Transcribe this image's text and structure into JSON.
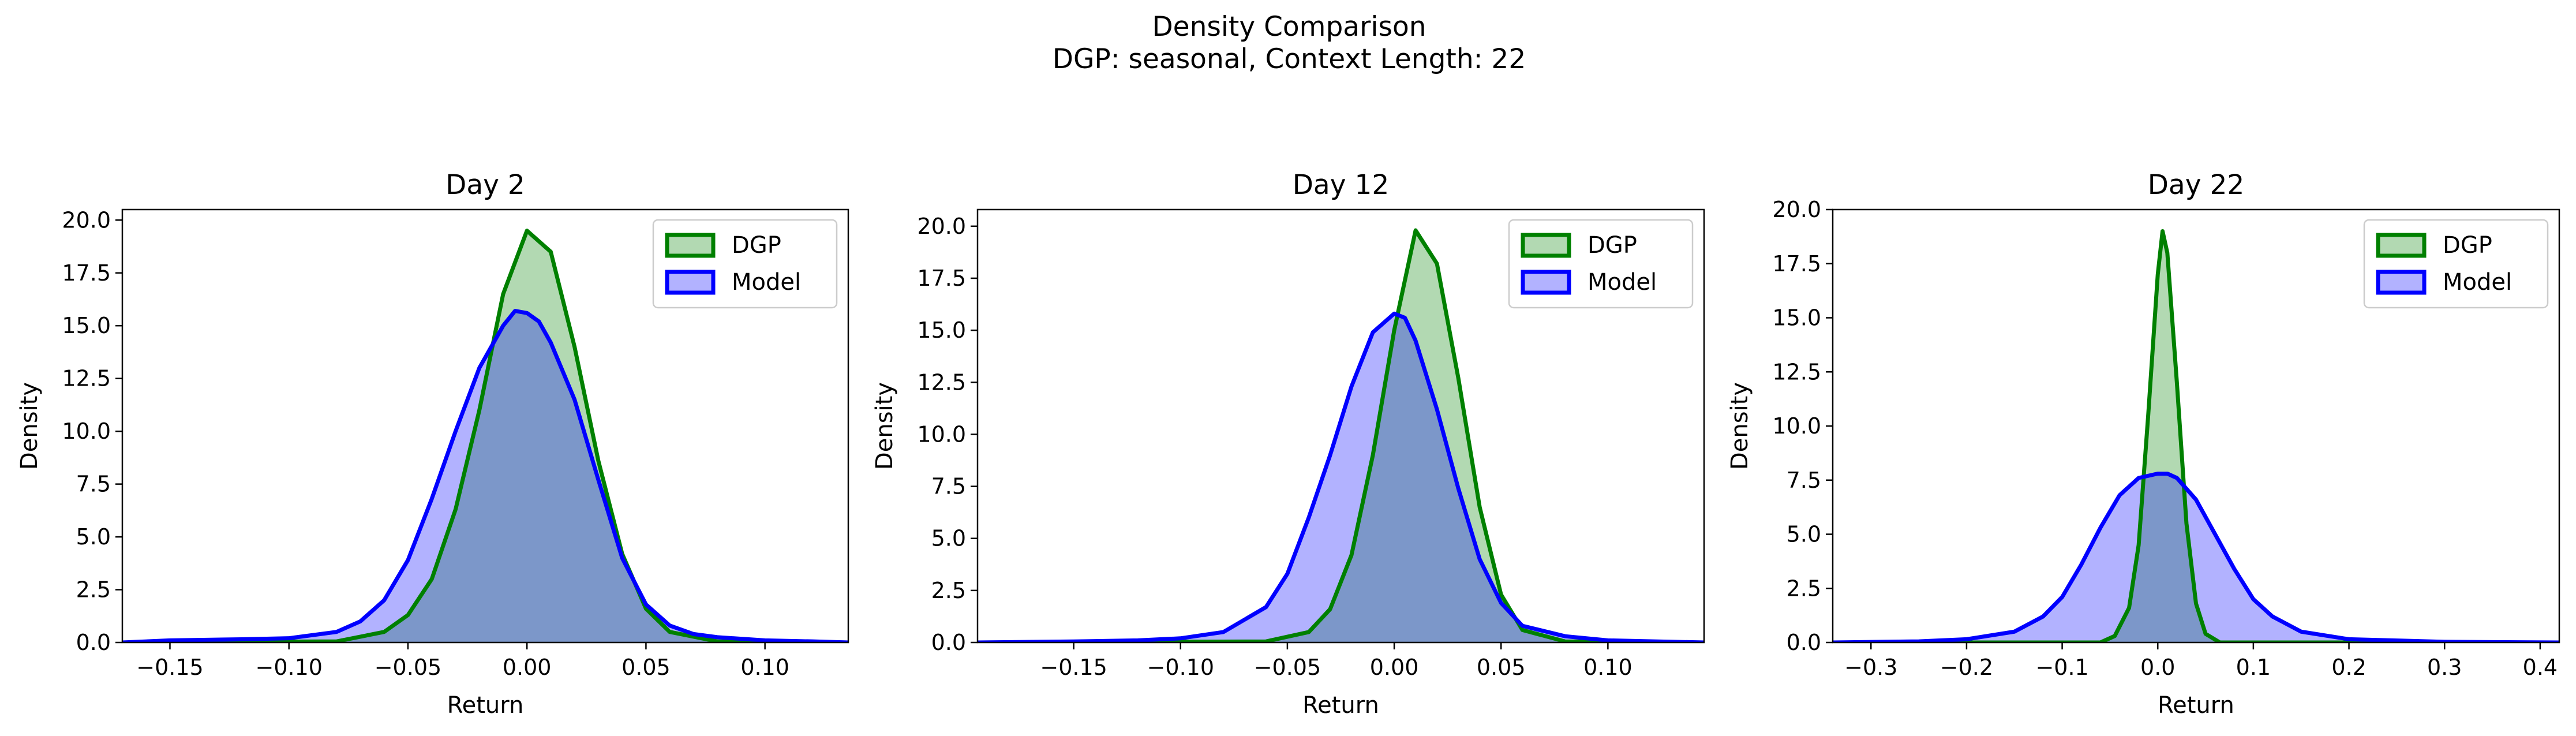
{
  "figure": {
    "title_line1": "Density Comparison",
    "title_line2": "DGP: seasonal, Context Length: 22"
  },
  "colors": {
    "dgp_line": "#008000",
    "dgp_fill": "#b2d8b2",
    "model_line": "#0000ff",
    "model_fill": "#b2b2ff",
    "overlap_fill": "#7f9bc8"
  },
  "chart_data": [
    {
      "type": "area",
      "title": "Day 2",
      "xlabel": "Return",
      "ylabel": "Density",
      "xlim": [
        -0.17,
        0.135
      ],
      "ylim": [
        0,
        20.5
      ],
      "xticks": [
        -0.15,
        -0.1,
        -0.05,
        0.0,
        0.05,
        0.1
      ],
      "xtick_labels": [
        "−0.15",
        "−0.10",
        "−0.05",
        "0.00",
        "0.05",
        "0.10"
      ],
      "yticks": [
        0,
        2.5,
        5,
        7.5,
        10,
        12.5,
        15,
        17.5,
        20
      ],
      "ytick_labels": [
        "0.0",
        "2.5",
        "5.0",
        "7.5",
        "10.0",
        "12.5",
        "15.0",
        "17.5",
        "20.0"
      ],
      "legend": {
        "position": "top-right",
        "entries": [
          "DGP",
          "Model"
        ]
      },
      "series": [
        {
          "name": "DGP",
          "x": [
            -0.17,
            -0.08,
            -0.06,
            -0.05,
            -0.04,
            -0.03,
            -0.02,
            -0.01,
            0.0,
            0.01,
            0.02,
            0.03,
            0.04,
            0.05,
            0.06,
            0.08,
            0.135
          ],
          "y": [
            0.0,
            0.05,
            0.5,
            1.3,
            3.0,
            6.3,
            11.0,
            16.5,
            19.5,
            18.5,
            14.0,
            8.6,
            4.2,
            1.6,
            0.5,
            0.05,
            0.0
          ]
        },
        {
          "name": "Model",
          "x": [
            -0.17,
            -0.15,
            -0.12,
            -0.1,
            -0.08,
            -0.07,
            -0.06,
            -0.05,
            -0.04,
            -0.03,
            -0.02,
            -0.01,
            -0.005,
            0.0,
            0.005,
            0.01,
            0.02,
            0.03,
            0.04,
            0.05,
            0.06,
            0.07,
            0.08,
            0.1,
            0.12,
            0.135
          ],
          "y": [
            0.0,
            0.1,
            0.15,
            0.2,
            0.5,
            1.0,
            2.0,
            3.9,
            6.8,
            10.0,
            13.0,
            15.0,
            15.7,
            15.6,
            15.2,
            14.2,
            11.5,
            7.7,
            4.0,
            1.8,
            0.8,
            0.4,
            0.25,
            0.1,
            0.05,
            0.0
          ]
        }
      ]
    },
    {
      "type": "area",
      "title": "Day 12",
      "xlabel": "Return",
      "ylabel": "Density",
      "xlim": [
        -0.195,
        0.145
      ],
      "ylim": [
        0,
        20.8
      ],
      "xticks": [
        -0.15,
        -0.1,
        -0.05,
        0.0,
        0.05,
        0.1
      ],
      "xtick_labels": [
        "−0.15",
        "−0.10",
        "−0.05",
        "0.00",
        "0.05",
        "0.10"
      ],
      "yticks": [
        0,
        2.5,
        5,
        7.5,
        10,
        12.5,
        15,
        17.5,
        20
      ],
      "ytick_labels": [
        "0.0",
        "2.5",
        "5.0",
        "7.5",
        "10.0",
        "12.5",
        "15.0",
        "17.5",
        "20.0"
      ],
      "legend": {
        "position": "top-right",
        "entries": [
          "DGP",
          "Model"
        ]
      },
      "series": [
        {
          "name": "DGP",
          "x": [
            -0.195,
            -0.06,
            -0.04,
            -0.03,
            -0.02,
            -0.01,
            0.0,
            0.01,
            0.02,
            0.03,
            0.04,
            0.05,
            0.06,
            0.08,
            0.145
          ],
          "y": [
            0.0,
            0.05,
            0.5,
            1.6,
            4.2,
            9.0,
            15.0,
            19.8,
            18.2,
            12.7,
            6.5,
            2.3,
            0.6,
            0.05,
            0.0
          ]
        },
        {
          "name": "Model",
          "x": [
            -0.195,
            -0.15,
            -0.12,
            -0.1,
            -0.08,
            -0.06,
            -0.05,
            -0.04,
            -0.03,
            -0.02,
            -0.01,
            0.0,
            0.005,
            0.01,
            0.02,
            0.03,
            0.04,
            0.05,
            0.06,
            0.08,
            0.1,
            0.145
          ],
          "y": [
            0.0,
            0.05,
            0.1,
            0.2,
            0.5,
            1.7,
            3.3,
            6.0,
            9.0,
            12.3,
            14.9,
            15.8,
            15.6,
            14.5,
            11.2,
            7.4,
            4.0,
            1.9,
            0.8,
            0.3,
            0.1,
            0.0
          ]
        }
      ]
    },
    {
      "type": "area",
      "title": "Day 22",
      "xlabel": "Return",
      "ylabel": "Density",
      "xlim": [
        -0.34,
        0.42
      ],
      "ylim": [
        0,
        20.0
      ],
      "xticks": [
        -0.3,
        -0.2,
        -0.1,
        0.0,
        0.1,
        0.2,
        0.3,
        0.4
      ],
      "xtick_labels": [
        "−0.3",
        "−0.2",
        "−0.1",
        "0.0",
        "0.1",
        "0.2",
        "0.3",
        "0.4"
      ],
      "yticks": [
        0,
        2.5,
        5,
        7.5,
        10,
        12.5,
        15,
        17.5,
        20
      ],
      "ytick_labels": [
        "0.0",
        "2.5",
        "5.0",
        "7.5",
        "10.0",
        "12.5",
        "15.0",
        "17.5",
        "20.0"
      ],
      "legend": {
        "position": "top-right",
        "entries": [
          "DGP",
          "Model"
        ]
      },
      "series": [
        {
          "name": "DGP",
          "x": [
            -0.34,
            -0.06,
            -0.045,
            -0.03,
            -0.02,
            -0.01,
            0.0,
            0.005,
            0.01,
            0.02,
            0.03,
            0.04,
            0.05,
            0.065,
            0.42
          ],
          "y": [
            0.0,
            0.0,
            0.3,
            1.6,
            4.5,
            10.5,
            17.0,
            19.0,
            18.0,
            12.0,
            5.5,
            1.8,
            0.4,
            0.0,
            0.0
          ]
        },
        {
          "name": "Model",
          "x": [
            -0.34,
            -0.25,
            -0.2,
            -0.15,
            -0.12,
            -0.1,
            -0.08,
            -0.06,
            -0.04,
            -0.02,
            0.0,
            0.01,
            0.02,
            0.04,
            0.06,
            0.08,
            0.1,
            0.12,
            0.15,
            0.2,
            0.3,
            0.42
          ],
          "y": [
            0.0,
            0.05,
            0.15,
            0.5,
            1.2,
            2.1,
            3.6,
            5.3,
            6.8,
            7.6,
            7.8,
            7.8,
            7.6,
            6.6,
            5.0,
            3.4,
            2.0,
            1.2,
            0.5,
            0.15,
            0.03,
            0.0
          ]
        }
      ]
    }
  ]
}
